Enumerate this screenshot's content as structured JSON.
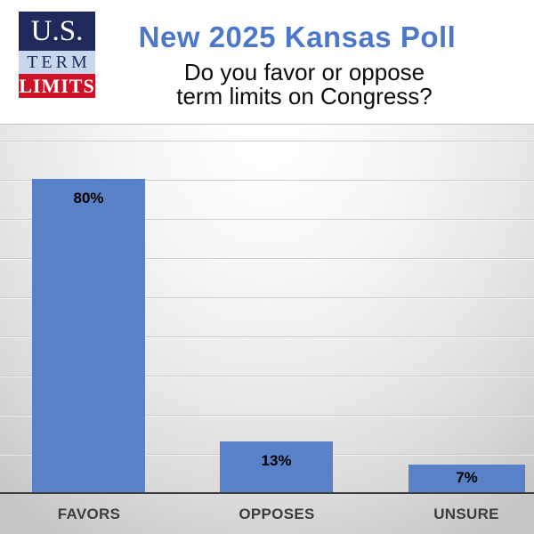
{
  "logo": {
    "line1": "U.S.",
    "line2": "TERM",
    "line3": "LIMITS"
  },
  "header": {
    "title": "New 2025 Kansas Poll",
    "subtitle_line1": "Do you favor or oppose",
    "subtitle_line2": "term limits on Congress?"
  },
  "chart_data": {
    "type": "bar",
    "title": "New 2025 Kansas Poll",
    "question": "Do you favor or oppose term limits on Congress?",
    "categories": [
      "FAVORS",
      "OPPOSES",
      "UNSURE"
    ],
    "values": [
      80,
      13,
      7
    ],
    "value_labels": [
      "80%",
      "13%",
      "7%"
    ],
    "ylim": [
      0,
      90
    ],
    "gridline_step_pct": 10,
    "grid": "horizontal gridlines, no y-axis tick labels",
    "legend": "none",
    "bar_color": "#5881c8",
    "background": "gray-to-white gradient"
  },
  "colors": {
    "title_blue": "#4d78c8",
    "bar_blue": "#5881c8",
    "logo_navy": "#20295c",
    "logo_light_blue": "#c9d7ec",
    "logo_red": "#ce1126",
    "axis_dark": "#3f3f3f",
    "category_label_gray": "#3d3d3d"
  }
}
